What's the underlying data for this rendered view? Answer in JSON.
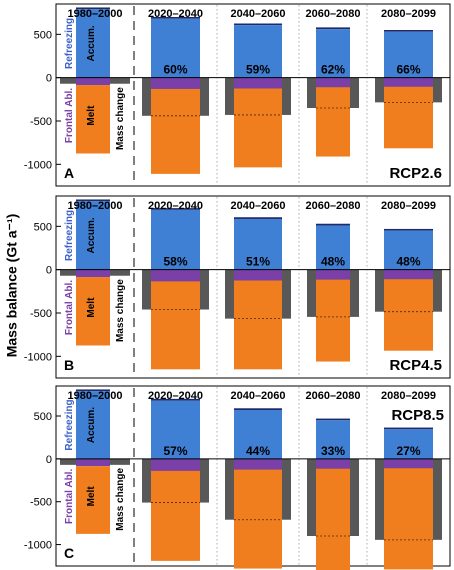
{
  "chart_data": {
    "type": "bar",
    "ylabel": "Mass balance (Gt a⁻¹)",
    "ylim": [
      -1250,
      850
    ],
    "yticks": [
      500,
      0,
      -500,
      -1000
    ],
    "components": {
      "refreezing": "Refreezing",
      "accumulation": "Accum.",
      "frontal_ablation": "Frontal Abl.",
      "melt": "Melt",
      "mass_change": "Mass change"
    },
    "colors": {
      "accumulation": "#3f7fd4",
      "refreezing": "#1f2a6b",
      "frontal_ablation": "#7b3fa8",
      "melt": "#f07d1e",
      "mass_change": "#585858"
    },
    "panels": [
      {
        "letter": "A",
        "scenario": "RCP2.6",
        "periods": [
          {
            "label": "1980–2000",
            "accumulation": 790,
            "refreezing": 20,
            "frontal_ablation": -85,
            "melt": -875,
            "mass_change": -70,
            "pct": ""
          },
          {
            "label": "2020–2040",
            "accumulation": 680,
            "refreezing": 20,
            "frontal_ablation": -130,
            "melt": -1110,
            "mass_change": -440,
            "pct": "60%"
          },
          {
            "label": "2040–2060",
            "accumulation": 605,
            "refreezing": 20,
            "frontal_ablation": -125,
            "melt": -1035,
            "mass_change": -430,
            "pct": "59%"
          },
          {
            "label": "2060–2080",
            "accumulation": 560,
            "refreezing": 20,
            "frontal_ablation": -110,
            "melt": -910,
            "mass_change": -350,
            "pct": "62%"
          },
          {
            "label": "2080–2099",
            "accumulation": 530,
            "refreezing": 20,
            "frontal_ablation": -105,
            "melt": -815,
            "mass_change": -285,
            "pct": "66%"
          }
        ]
      },
      {
        "letter": "B",
        "scenario": "RCP4.5",
        "periods": [
          {
            "label": "1980–2000",
            "accumulation": 790,
            "refreezing": 20,
            "frontal_ablation": -85,
            "melt": -875,
            "mass_change": -70,
            "pct": ""
          },
          {
            "label": "2020–2040",
            "accumulation": 690,
            "refreezing": 20,
            "frontal_ablation": -135,
            "melt": -1150,
            "mass_change": -460,
            "pct": "58%"
          },
          {
            "label": "2040–2060",
            "accumulation": 585,
            "refreezing": 20,
            "frontal_ablation": -125,
            "melt": -1150,
            "mass_change": -565,
            "pct": "51%"
          },
          {
            "label": "2060–2080",
            "accumulation": 510,
            "refreezing": 20,
            "frontal_ablation": -115,
            "melt": -1060,
            "mass_change": -545,
            "pct": "48%"
          },
          {
            "label": "2080–2099",
            "accumulation": 450,
            "refreezing": 20,
            "frontal_ablation": -110,
            "melt": -935,
            "mass_change": -485,
            "pct": "48%"
          }
        ]
      },
      {
        "letter": "C",
        "scenario": "RCP8.5",
        "periods": [
          {
            "label": "1980–2000",
            "accumulation": 790,
            "refreezing": 20,
            "frontal_ablation": -85,
            "melt": -875,
            "mass_change": -70,
            "pct": ""
          },
          {
            "label": "2020–2040",
            "accumulation": 680,
            "refreezing": 20,
            "frontal_ablation": -140,
            "melt": -1190,
            "mass_change": -510,
            "pct": "57%"
          },
          {
            "label": "2040–2060",
            "accumulation": 570,
            "refreezing": 20,
            "frontal_ablation": -125,
            "melt": -1280,
            "mass_change": -710,
            "pct": "44%"
          },
          {
            "label": "2060–2080",
            "accumulation": 450,
            "refreezing": 20,
            "frontal_ablation": -115,
            "melt": -1350,
            "mass_change": -900,
            "pct": "33%"
          },
          {
            "label": "2080–2099",
            "accumulation": 345,
            "refreezing": 20,
            "frontal_ablation": -110,
            "melt": -1290,
            "mass_change": -945,
            "pct": "27%"
          }
        ]
      }
    ]
  }
}
